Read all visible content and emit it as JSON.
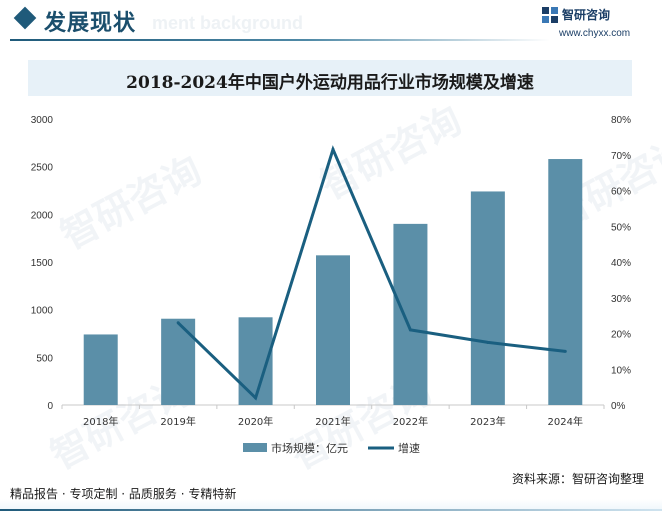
{
  "header": {
    "title": "发展现状",
    "ghost_text": "ment background"
  },
  "brand": {
    "name": "智研咨询",
    "url": "www.chyxx.com",
    "watermark": "智研咨询"
  },
  "colors": {
    "bar": "#5b8fa8",
    "line": "#1a5f80",
    "title_bg": "#e7f1f8",
    "header_text": "#1b4f6d"
  },
  "chart_data": {
    "type": "bar",
    "title": "2018-2024年中国户外运动用品行业市场规模及增速",
    "categories": [
      "2018年",
      "2019年",
      "2020年",
      "2021年",
      "2022年",
      "2023年",
      "2024年"
    ],
    "series": [
      {
        "name": "市场规模：亿元",
        "type": "bar",
        "axis": "left",
        "values": [
          740,
          905,
          920,
          1570,
          1900,
          2240,
          2580
        ]
      },
      {
        "name": "增速",
        "type": "line",
        "axis": "right",
        "values": [
          null,
          0.23,
          0.02,
          0.715,
          0.21,
          0.175,
          0.15
        ]
      }
    ],
    "y_left": {
      "min": 0,
      "max": 3000,
      "ticks": [
        0,
        500,
        1000,
        1500,
        2000,
        2500,
        3000
      ]
    },
    "y_right": {
      "min": 0,
      "max": 0.8,
      "ticks": [
        0,
        0.1,
        0.2,
        0.3,
        0.4,
        0.5,
        0.6,
        0.7,
        0.8
      ],
      "tick_labels": [
        "0%",
        "10%",
        "20%",
        "30%",
        "40%",
        "50%",
        "60%",
        "70%",
        "80%"
      ]
    },
    "legend": [
      "市场规模：亿元",
      "增速"
    ],
    "legend_position": "bottom",
    "grid": false
  },
  "source": "资料来源：智研咨询整理",
  "footer": {
    "tagline": "精品报告 · 专项定制 · 品质服务 · 专精特新"
  }
}
